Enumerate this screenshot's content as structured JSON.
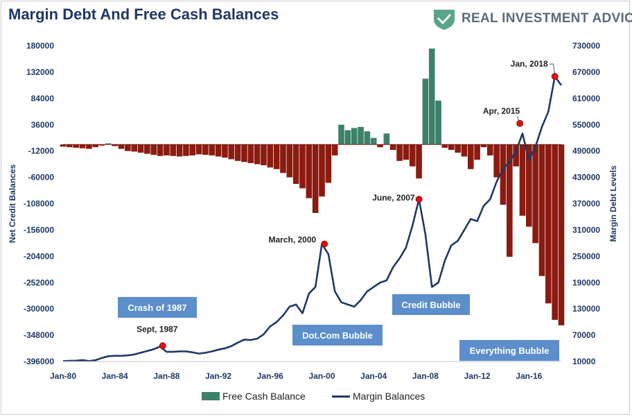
{
  "header": {
    "title": "Margin Debt And Free Cash Balances",
    "brand": "REAL INVESTMENT ADVICE"
  },
  "legend": {
    "items": [
      "Free Cash Balance",
      "Margin Balances"
    ]
  },
  "colors": {
    "positive_bar": "#3e8169",
    "negative_bar": "#8b1a10",
    "line": "#1f3864",
    "marker": "#dd1111",
    "box": "#5b8ecb",
    "logo": "#5aa58a"
  },
  "chart_data": {
    "type": "bar+line",
    "title": "Margin Debt And Free Cash Balances",
    "x_ticks": [
      "Jan-80",
      "Jan-84",
      "Jan-88",
      "Jan-92",
      "Jan-96",
      "Jan-00",
      "Jan-04",
      "Jan-08",
      "Jan-12",
      "Jan-16"
    ],
    "x_range": [
      1980.0,
      2018.5
    ],
    "left_axis": {
      "label": "Net Credit Balances",
      "range": [
        -396000,
        180000
      ],
      "ticks": [
        180000,
        132000,
        84000,
        36000,
        -12000,
        -60000,
        -108000,
        -156000,
        -204000,
        -252000,
        -300000,
        -348000,
        -396000
      ]
    },
    "right_axis": {
      "label": "Margin Debt Levels",
      "range": [
        10000,
        730000
      ],
      "ticks": [
        730000,
        670000,
        610000,
        550000,
        490000,
        430000,
        370000,
        310000,
        250000,
        190000,
        130000,
        70000,
        10000
      ]
    },
    "series": [
      {
        "name": "Free Cash Balance",
        "kind": "bar",
        "axis": "left",
        "x": [
          1980.0,
          1980.5,
          1981.0,
          1981.5,
          1982.0,
          1982.5,
          1983.0,
          1983.5,
          1984.0,
          1984.5,
          1985.0,
          1985.5,
          1986.0,
          1986.5,
          1987.0,
          1987.5,
          1988.0,
          1988.5,
          1989.0,
          1989.5,
          1990.0,
          1990.5,
          1991.0,
          1991.5,
          1992.0,
          1992.5,
          1993.0,
          1993.5,
          1994.0,
          1994.5,
          1995.0,
          1995.5,
          1996.0,
          1996.5,
          1997.0,
          1997.5,
          1998.0,
          1998.5,
          1999.0,
          1999.5,
          2000.0,
          2000.5,
          2001.0,
          2001.5,
          2002.0,
          2002.5,
          2003.0,
          2003.5,
          2004.0,
          2004.5,
          2005.0,
          2005.5,
          2006.0,
          2006.5,
          2007.0,
          2007.5,
          2008.0,
          2008.5,
          2009.0,
          2009.5,
          2010.0,
          2010.5,
          2011.0,
          2011.5,
          2012.0,
          2012.5,
          2013.0,
          2013.5,
          2014.0,
          2014.5,
          2015.0,
          2015.5,
          2016.0,
          2016.5,
          2017.0,
          2017.5,
          2018.0,
          2018.5
        ],
        "values": [
          -4000,
          -5000,
          -6000,
          -7000,
          -8000,
          -5000,
          -2000,
          2000,
          -3000,
          -8000,
          -12000,
          -13000,
          -15000,
          -17000,
          -19000,
          -21000,
          -20000,
          -21000,
          -22000,
          -21000,
          -20000,
          -18000,
          -19000,
          -20000,
          -22000,
          -24000,
          -27000,
          -30000,
          -32000,
          -34000,
          -36000,
          -38000,
          -42000,
          -45000,
          -52000,
          -60000,
          -72000,
          -80000,
          -98000,
          -125000,
          -95000,
          -70000,
          -20000,
          36000,
          26000,
          30000,
          32000,
          24000,
          12000,
          -5000,
          20000,
          -10000,
          -30000,
          -28000,
          -40000,
          -62000,
          120000,
          175000,
          80000,
          -6000,
          -10000,
          -15000,
          -22000,
          -45000,
          -28000,
          -5000,
          -20000,
          -60000,
          -110000,
          -205000,
          -40000,
          -130000,
          -150000,
          -180000,
          -240000,
          -290000,
          -320000,
          -330000
        ]
      },
      {
        "name": "Margin Balances",
        "kind": "line",
        "axis": "right",
        "x": [
          1980.0,
          1980.5,
          1981.0,
          1981.5,
          1982.0,
          1982.5,
          1983.0,
          1983.5,
          1984.0,
          1984.5,
          1985.0,
          1985.5,
          1986.0,
          1986.5,
          1987.0,
          1987.5,
          1988.0,
          1988.5,
          1989.0,
          1989.5,
          1990.0,
          1990.5,
          1991.0,
          1991.5,
          1992.0,
          1992.5,
          1993.0,
          1993.5,
          1994.0,
          1994.5,
          1995.0,
          1995.5,
          1996.0,
          1996.5,
          1997.0,
          1997.5,
          1998.0,
          1998.5,
          1999.0,
          1999.5,
          2000.0,
          2000.5,
          2001.0,
          2001.5,
          2002.0,
          2002.5,
          2003.0,
          2003.5,
          2004.0,
          2004.5,
          2005.0,
          2005.5,
          2006.0,
          2006.5,
          2007.0,
          2007.5,
          2008.0,
          2008.5,
          2009.0,
          2009.5,
          2010.0,
          2010.5,
          2011.0,
          2011.5,
          2012.0,
          2012.5,
          2013.0,
          2013.5,
          2014.0,
          2014.5,
          2015.0,
          2015.5,
          2016.0,
          2016.5,
          2017.0,
          2017.5,
          2018.0,
          2018.5
        ],
        "values": [
          11000,
          11500,
          12000,
          13000,
          11000,
          13000,
          18000,
          22000,
          23000,
          23000,
          24000,
          26000,
          30000,
          34000,
          38000,
          44000,
          32000,
          32000,
          33000,
          33000,
          31000,
          28000,
          30000,
          33000,
          37000,
          40000,
          45000,
          53000,
          60000,
          59000,
          62000,
          72000,
          90000,
          100000,
          115000,
          135000,
          140000,
          120000,
          165000,
          180000,
          278000,
          255000,
          170000,
          145000,
          140000,
          135000,
          150000,
          170000,
          180000,
          190000,
          195000,
          225000,
          245000,
          270000,
          320000,
          380000,
          300000,
          180000,
          190000,
          240000,
          275000,
          285000,
          310000,
          335000,
          330000,
          365000,
          380000,
          420000,
          450000,
          465000,
          490000,
          530000,
          470000,
          500000,
          545000,
          580000,
          660000,
          640000
        ]
      }
    ],
    "annotations": [
      {
        "label": "Sept, 1987",
        "x": 1987.7,
        "y": 46000
      },
      {
        "label": "March, 2000",
        "x": 2000.2,
        "y": 278000
      },
      {
        "label": "June, 2007",
        "x": 2007.5,
        "y": 380000
      },
      {
        "label": "Apr, 2015",
        "x": 2015.3,
        "y": 553000
      },
      {
        "label": "Jan, 2018",
        "x": 2018.0,
        "y": 660000
      }
    ],
    "callout_boxes": [
      "Crash of 1987",
      "Dot.Com Bubble",
      "Credit Bubble",
      "Everything Bubble"
    ],
    "grid": false,
    "legend_position": "bottom"
  }
}
